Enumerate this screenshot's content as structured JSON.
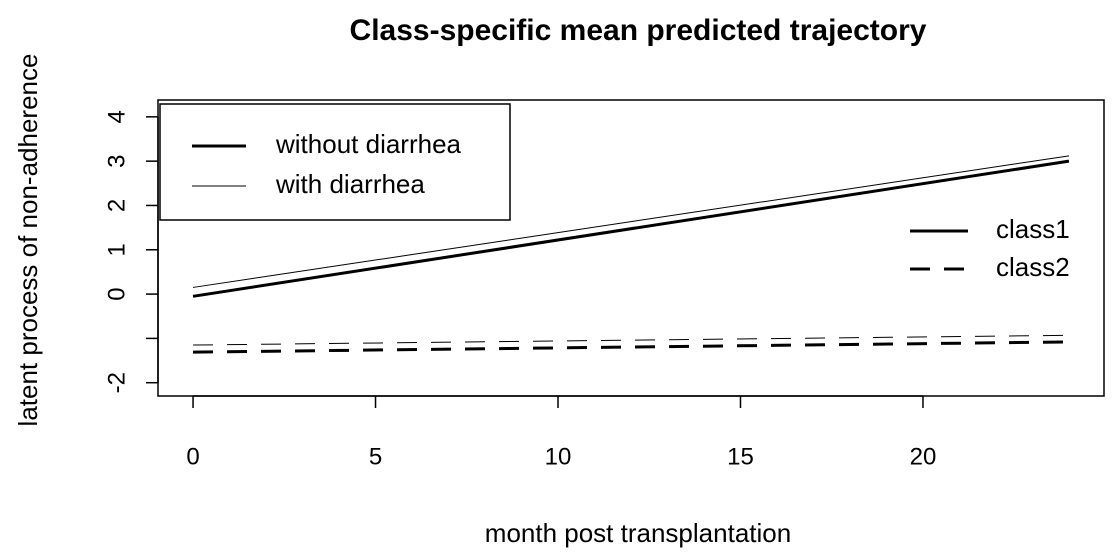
{
  "chart_data": {
    "type": "line",
    "title": "Class-specific mean predicted trajectory",
    "xlabel": "month post transplantation",
    "ylabel": "latent process of non-adherence",
    "x": [
      0,
      24
    ],
    "series": [
      {
        "color": "#000000",
        "linewidth": 3,
        "dashed": false,
        "values": [
          -0.05,
          3.0
        ]
      },
      {
        "color": "#000000",
        "linewidth": 1,
        "dashed": false,
        "values": [
          0.15,
          3.12
        ]
      },
      {
        "color": "#000000",
        "linewidth": 3,
        "dashed": true,
        "values": [
          -1.31,
          -1.08
        ]
      },
      {
        "color": "#000000",
        "linewidth": 1,
        "dashed": true,
        "values": [
          -1.15,
          -0.93
        ]
      }
    ],
    "legend_width": [
      {
        "label": "without diarrhea",
        "linewidth": 3
      },
      {
        "label": "with diarrhea",
        "linewidth": 1
      }
    ],
    "legend_type": [
      {
        "label": "class1",
        "dashed": false
      },
      {
        "label": "class2",
        "dashed": true
      }
    ],
    "xlim": [
      -0.96,
      24.96
    ],
    "xticks": [
      0,
      5,
      10,
      15,
      20
    ],
    "ylim": [
      -2.3,
      4.38
    ],
    "yticks": [
      -2,
      {
        "value": -1,
        "label": null
      },
      0,
      1,
      2,
      3,
      4
    ]
  }
}
